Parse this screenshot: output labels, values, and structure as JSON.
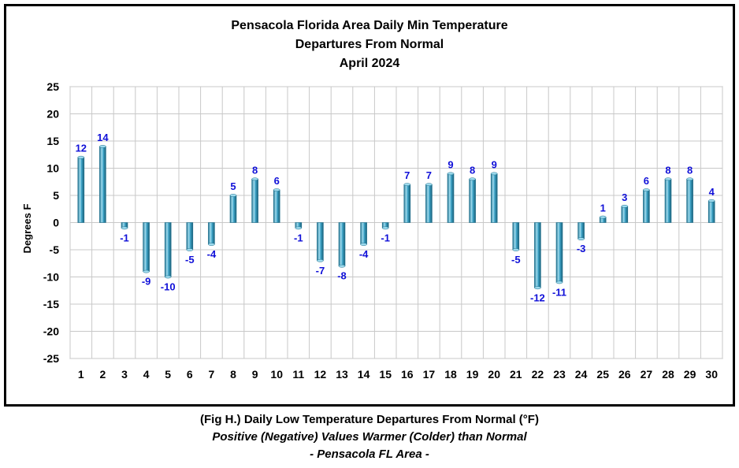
{
  "chart_data": {
    "type": "bar",
    "title": [
      "Pensacola Florida Area Daily Min Temperature",
      "Departures From Normal",
      "April 2024"
    ],
    "xlabel": "",
    "ylabel": "Degrees F",
    "ylim": [
      -25,
      25
    ],
    "yticks": [
      25,
      20,
      15,
      10,
      5,
      0,
      -5,
      -10,
      -15,
      -20,
      -25
    ],
    "categories": [
      "1",
      "2",
      "3",
      "4",
      "5",
      "6",
      "7",
      "8",
      "9",
      "10",
      "11",
      "12",
      "13",
      "14",
      "15",
      "16",
      "17",
      "18",
      "19",
      "20",
      "21",
      "22",
      "23",
      "24",
      "25",
      "26",
      "27",
      "28",
      "29",
      "30"
    ],
    "values": [
      12,
      14,
      -1,
      -9,
      -10,
      -5,
      -4,
      5,
      8,
      6,
      -1,
      -7,
      -8,
      -4,
      -1,
      7,
      7,
      9,
      8,
      9,
      -5,
      -12,
      -11,
      -3,
      1,
      3,
      6,
      8,
      8,
      4
    ],
    "grid": true,
    "legend": "none",
    "colors": {
      "bar": "#3aa0c4",
      "bar_dark": "#1f6f8c",
      "bar_light": "#9fdcef",
      "label": "#1010d8"
    }
  },
  "caption": {
    "line1": "(Fig H.) Daily Low Temperature Departures From Normal (°F)",
    "line2": "Positive (Negative) Values Warmer (Colder) than Normal",
    "line3": "- Pensacola FL Area -"
  }
}
